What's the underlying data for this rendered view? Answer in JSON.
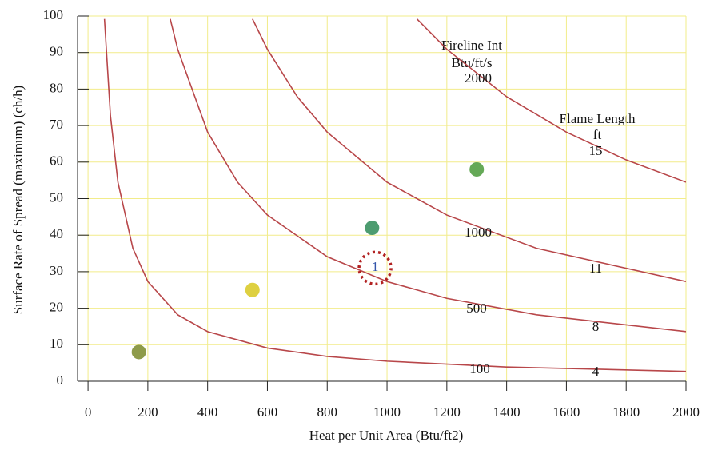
{
  "chart_data": {
    "type": "line",
    "x_label": "Heat per Unit Area (Btu/ft2)",
    "y_label": "Surface Rate of Spread (maximum) (ch/h)",
    "xlim": [
      -35,
      2000
    ],
    "ylim": [
      0,
      100
    ],
    "xticks": [
      0,
      200,
      400,
      600,
      800,
      1000,
      1200,
      1400,
      1600,
      1800,
      2000
    ],
    "yticks": [
      0,
      10,
      20,
      30,
      40,
      50,
      60,
      70,
      80,
      90,
      100
    ],
    "grid": true,
    "grid_color": "#f2ec8a",
    "fireline_title": "Fireline Int",
    "fireline_units": "Btu/ft/s",
    "flame_title": "Flame Length",
    "flame_units": "ft",
    "series": [
      {
        "name": "100",
        "flame_length": "4",
        "color": "#b8474a",
        "x": [
          55,
          75,
          100,
          150,
          200,
          300,
          400,
          600,
          800,
          1000,
          1400,
          2000
        ],
        "values": [
          99.2,
          72.7,
          54.5,
          36.4,
          27.3,
          18.2,
          13.6,
          9.1,
          6.8,
          5.5,
          3.9,
          2.7
        ]
      },
      {
        "name": "500",
        "flame_length": "8",
        "color": "#b8474a",
        "x": [
          275,
          300,
          400,
          500,
          600,
          800,
          1000,
          1200,
          1500,
          2000
        ],
        "values": [
          99.2,
          90.9,
          68.2,
          54.5,
          45.5,
          34.1,
          27.3,
          22.7,
          18.2,
          13.6
        ]
      },
      {
        "name": "1000",
        "flame_length": "11",
        "color": "#b8474a",
        "x": [
          550,
          600,
          700,
          800,
          1000,
          1200,
          1500,
          2000
        ],
        "values": [
          99.2,
          90.9,
          77.9,
          68.2,
          54.5,
          45.5,
          36.4,
          27.3
        ]
      },
      {
        "name": "2000",
        "flame_length": "15",
        "color": "#b8474a",
        "x": [
          1100,
          1200,
          1400,
          1600,
          1800,
          2000
        ],
        "values": [
          99.2,
          90.9,
          77.9,
          68.2,
          60.6,
          54.5
        ]
      }
    ],
    "icons": {
      "x": [
        170,
        550,
        950,
        1300
      ],
      "values": [
        8,
        25,
        42,
        58
      ]
    },
    "highlight": {
      "label": "1",
      "x": 960,
      "y": 31,
      "color": "#b22222"
    }
  }
}
